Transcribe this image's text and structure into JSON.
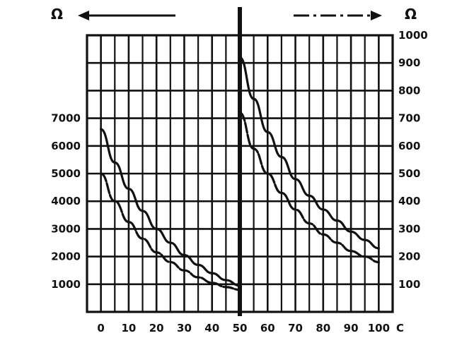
{
  "chart_data": {
    "type": "line",
    "x_ticks": [
      "0",
      "10",
      "20",
      "30",
      "40",
      "50",
      "60",
      "70",
      "80",
      "90",
      "100"
    ],
    "x_unit": "C",
    "left_axis": {
      "unit": "Ω",
      "ticks": [
        "1000",
        "2000",
        "3000",
        "4000",
        "5000",
        "6000",
        "7000"
      ],
      "ylim": [
        0,
        10000
      ]
    },
    "right_axis": {
      "unit": "Ω",
      "ticks": [
        "100",
        "200",
        "300",
        "400",
        "500",
        "600",
        "700",
        "800",
        "900",
        "1000"
      ],
      "ylim": [
        0,
        1000
      ]
    },
    "xlim": [
      -5,
      105
    ],
    "grid": true,
    "series": [
      {
        "axis": "left",
        "style": "solid",
        "x": [
          0,
          5,
          10,
          15,
          20,
          25,
          30,
          35,
          40,
          45,
          50
        ],
        "y": [
          6600,
          5400,
          4450,
          3650,
          3000,
          2500,
          2050,
          1700,
          1400,
          1150,
          950
        ]
      },
      {
        "axis": "left",
        "style": "dashed",
        "x": [
          0,
          5,
          10,
          15,
          20,
          25,
          30,
          35,
          40,
          45,
          50
        ],
        "y": [
          5000,
          4000,
          3250,
          2650,
          2150,
          1800,
          1500,
          1250,
          1050,
          900,
          800
        ]
      },
      {
        "axis": "right",
        "style": "solid",
        "x": [
          50,
          55,
          60,
          65,
          70,
          75,
          80,
          85,
          90,
          95,
          100
        ],
        "y": [
          920,
          770,
          650,
          560,
          480,
          420,
          370,
          330,
          290,
          260,
          230
        ]
      },
      {
        "axis": "right",
        "style": "dashed",
        "x": [
          50,
          55,
          60,
          65,
          70,
          75,
          80,
          85,
          90,
          95,
          100
        ],
        "y": [
          720,
          590,
          500,
          430,
          370,
          320,
          280,
          250,
          220,
          200,
          180
        ]
      }
    ]
  }
}
